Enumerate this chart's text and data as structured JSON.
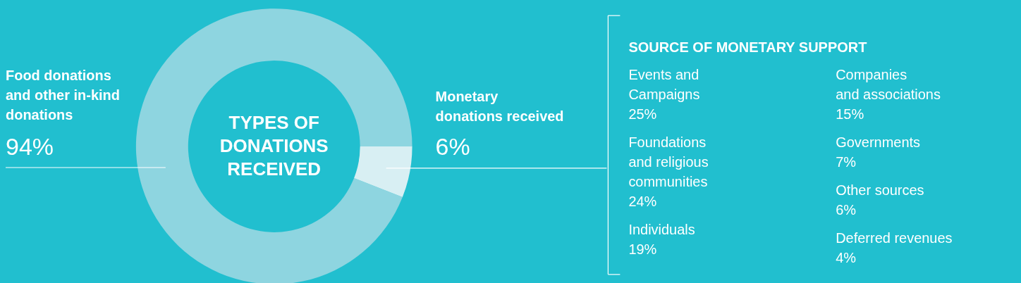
{
  "chart_data": [
    {
      "type": "donut",
      "title": "TYPES OF\nDONATIONS\nRECEIVED",
      "categories": [
        "Food donations\nand other in-kind\ndonations",
        "Monetary\ndonations received"
      ],
      "values": [
        94,
        6
      ],
      "colors": [
        "#8ed5e0",
        "#d8eff3"
      ],
      "value_labels": [
        "94%",
        "6%"
      ]
    },
    {
      "type": "other",
      "title": "SOURCE OF MONETARY SUPPORT",
      "annotations": [
        "Events and\nCampaigns\n25%",
        "Foundations\nand religious\ncommunities\n24%",
        "Individuals\n19%",
        "Companies\nand associations\n15%",
        "Governments\n7%",
        "Other sources\n6%",
        "Deferred revenues\n4%"
      ]
    }
  ]
}
